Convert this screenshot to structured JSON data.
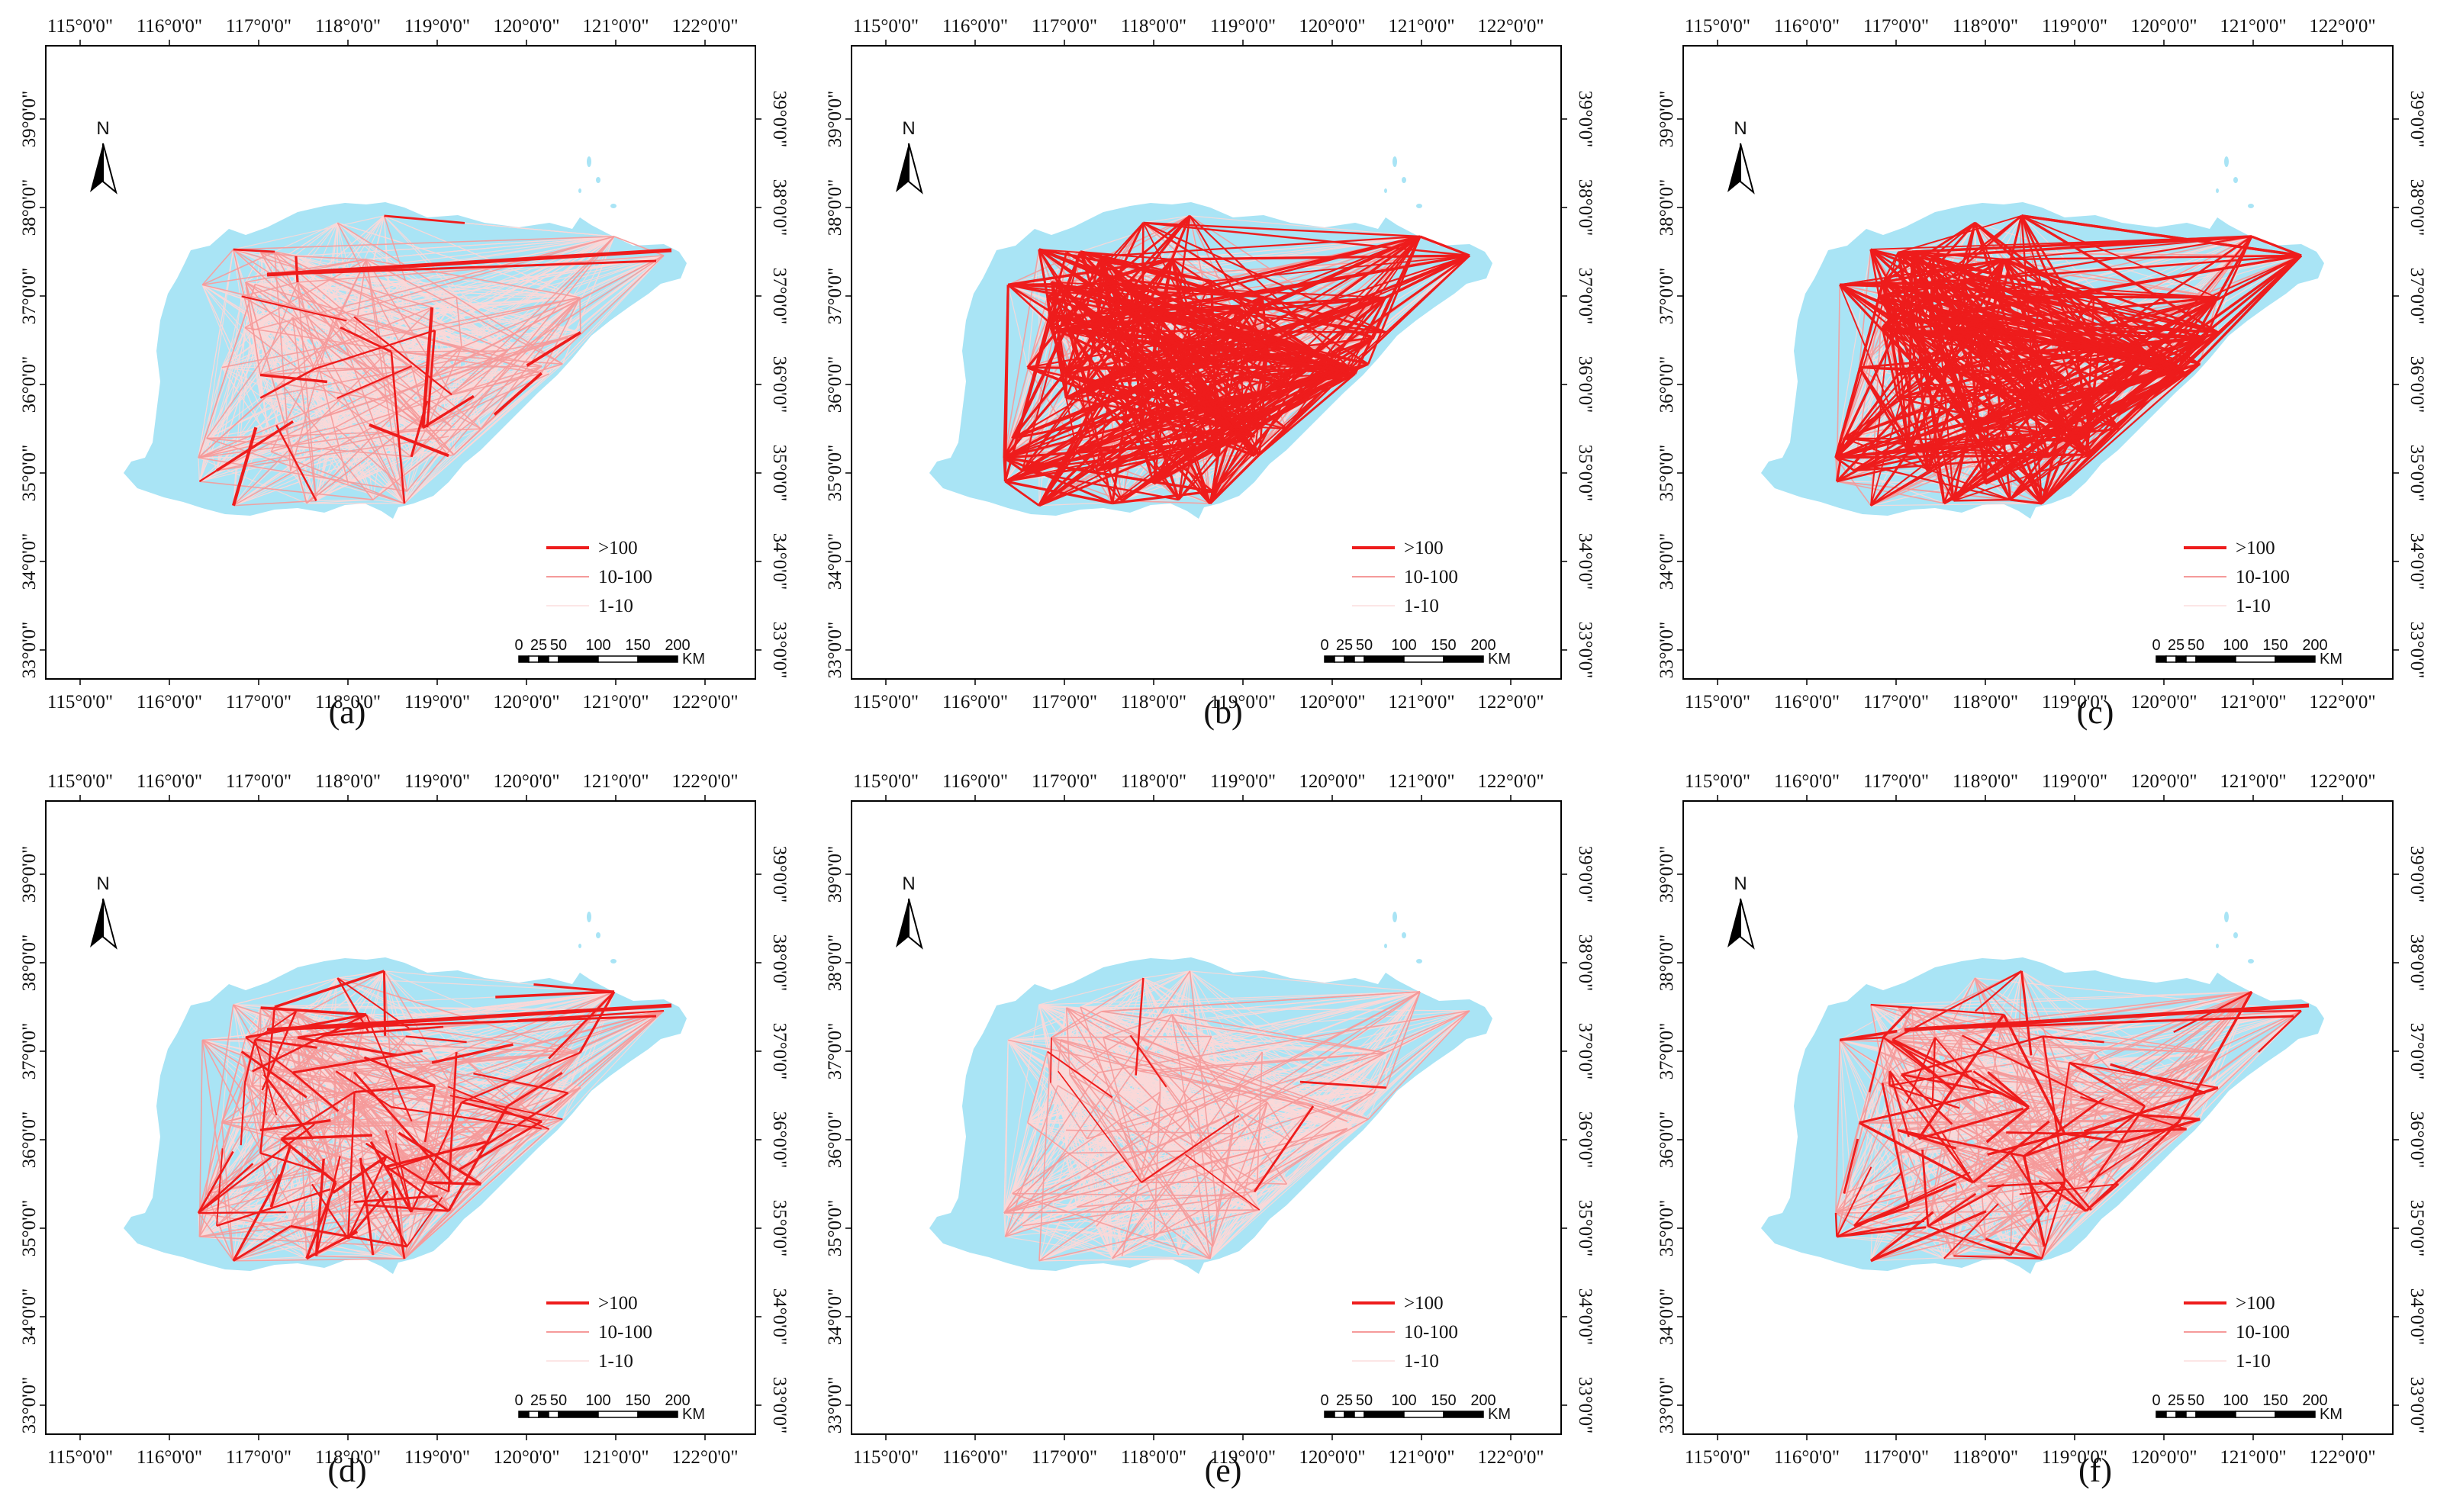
{
  "figure": {
    "longitude_labels": [
      "115°0'0\"",
      "116°0'0\"",
      "117°0'0\"",
      "118°0'0\"",
      "119°0'0\"",
      "120°0'0\"",
      "121°0'0\"",
      "122°0'0\""
    ],
    "latitude_labels": [
      "33°0'0\"",
      "34°0'0\"",
      "35°0'0\"",
      "36°0'0\"",
      "37°0'0\"",
      "38°0'0\"",
      "39°0'0\""
    ],
    "north_label": "N",
    "legend": [
      {
        "label": ">100",
        "color": "#ee1c1c"
      },
      {
        "label": "10-100",
        "color": "#f59a9a"
      },
      {
        "label": "1-10",
        "color": "#fbd8d8"
      }
    ],
    "scale_bar": {
      "ticks": [
        "0",
        "25",
        "50",
        "100",
        "150",
        "200"
      ],
      "tick_values_km": [
        0,
        25,
        50,
        100,
        150,
        200
      ],
      "unit": "KM"
    },
    "colors": {
      "land": "#a9e4f5",
      "strong": "#ee1c1c",
      "medium": "#f59a9a",
      "weak": "#fbd8d8",
      "frame": "#000000"
    },
    "panels": [
      {
        "label": "(a)",
        "intensity": "low-core"
      },
      {
        "label": "(b)",
        "intensity": "dense"
      },
      {
        "label": "(c)",
        "intensity": "dense"
      },
      {
        "label": "(d)",
        "intensity": "medium"
      },
      {
        "label": "(e)",
        "intensity": "sparse"
      },
      {
        "label": "(f)",
        "intensity": "medium"
      }
    ]
  }
}
